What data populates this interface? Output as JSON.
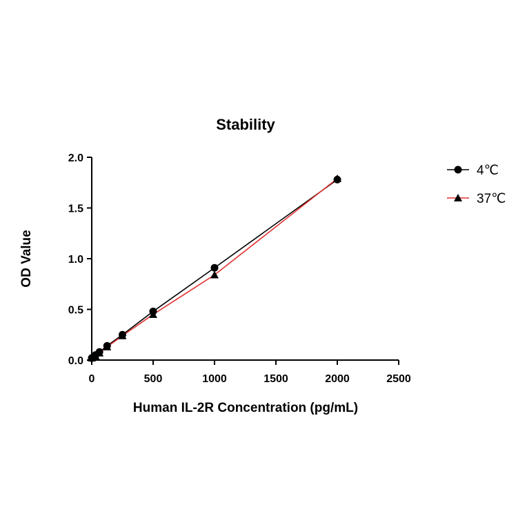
{
  "chart_data": {
    "type": "line",
    "title": "Stability",
    "xlabel": "Human IL-2R Concentration (pg/mL)",
    "ylabel": "OD Value",
    "xlim": [
      0,
      2500
    ],
    "ylim": [
      0,
      2.0
    ],
    "xticks": [
      0,
      500,
      1000,
      1500,
      2000,
      2500
    ],
    "yticks": [
      0.0,
      0.5,
      1.0,
      1.5,
      2.0
    ],
    "xtick_labels": [
      "0",
      "500",
      "1000",
      "1500",
      "2000",
      "2500"
    ],
    "ytick_labels": [
      "0.0",
      "0.5",
      "1.0",
      "1.5",
      "2.0"
    ],
    "grid": false,
    "legend_position": "top-right",
    "series": [
      {
        "name": "4℃",
        "marker": "circle",
        "color": "#000000",
        "line_color": "#000000",
        "x": [
          0,
          15.6,
          31.25,
          62.5,
          125,
          250,
          500,
          1000,
          2000
        ],
        "y": [
          0.02,
          0.03,
          0.05,
          0.08,
          0.14,
          0.25,
          0.48,
          0.91,
          1.78
        ]
      },
      {
        "name": "37℃",
        "marker": "triangle",
        "color": "#000000",
        "line_color": "#e03030",
        "x": [
          0,
          15.6,
          31.25,
          62.5,
          125,
          250,
          500,
          1000,
          2000
        ],
        "y": [
          0.02,
          0.03,
          0.04,
          0.07,
          0.13,
          0.24,
          0.45,
          0.84,
          1.79
        ]
      }
    ]
  }
}
